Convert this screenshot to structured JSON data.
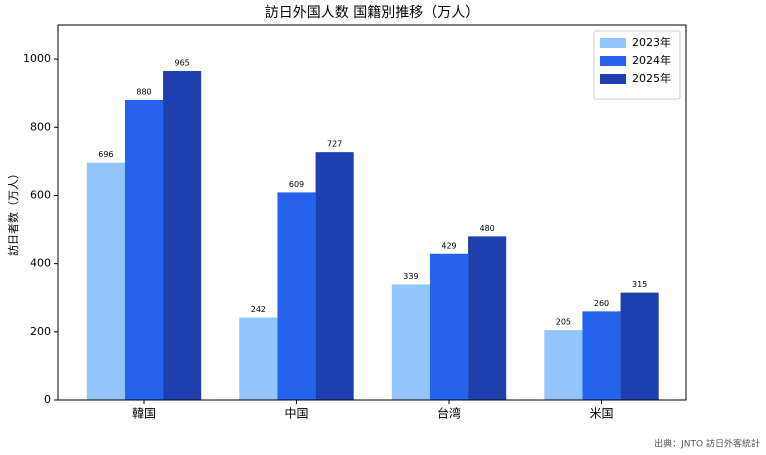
{
  "chart_data": {
    "type": "bar",
    "title": "訪日外国人数 国籍別推移（万人）",
    "y_label": "訪日者数（万人）",
    "categories": [
      "韓国",
      "中国",
      "台湾",
      "米国"
    ],
    "series": [
      {
        "name": "2023年",
        "color": "#93c5fd",
        "values": [
          696,
          242,
          339,
          205
        ]
      },
      {
        "name": "2024年",
        "color": "#2563eb",
        "values": [
          880,
          609,
          429,
          260
        ]
      },
      {
        "name": "2025年",
        "color": "#1e40af",
        "values": [
          965,
          727,
          480,
          315
        ]
      }
    ],
    "ylim": [
      0,
      1100
    ],
    "yticks": [
      0,
      200,
      400,
      600,
      800,
      1000
    ],
    "legend": "upper right",
    "source": "出典：JNTO 訪日外客統計"
  }
}
